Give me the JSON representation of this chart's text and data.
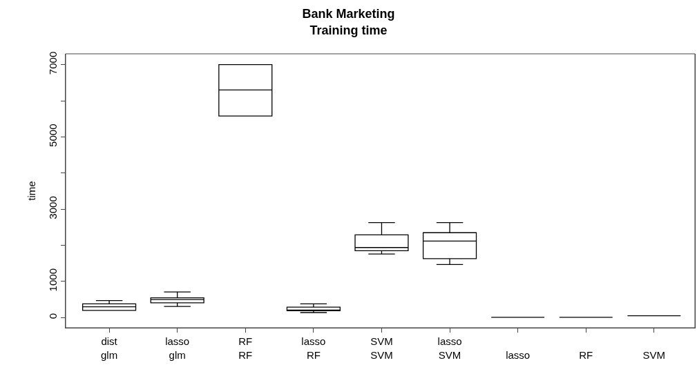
{
  "chart_data": {
    "type": "box",
    "title": "Bank Marketing\nTraining time",
    "ylabel": "time",
    "categories": [
      "dist\nglm",
      "lasso\nglm",
      "RF\nRF",
      "lasso\nRF",
      "SVM\nSVM",
      "lasso\nSVM",
      "lasso",
      "RF",
      "SVM"
    ],
    "boxes": [
      {
        "low": 200,
        "q1": 200,
        "median": 300,
        "q3": 380,
        "high": 470
      },
      {
        "low": 310,
        "q1": 410,
        "median": 500,
        "q3": 550,
        "high": 710
      },
      {
        "low": 5580,
        "q1": 5580,
        "median": 6300,
        "q3": 7000,
        "high": 7000
      },
      {
        "low": 140,
        "q1": 190,
        "median": 210,
        "q3": 290,
        "high": 380
      },
      {
        "low": 1760,
        "q1": 1850,
        "median": 1940,
        "q3": 2290,
        "high": 2630
      },
      {
        "low": 1470,
        "q1": 1630,
        "median": 2120,
        "q3": 2350,
        "high": 2630
      },
      {
        "low": 10,
        "q1": 10,
        "median": 10,
        "q3": 10,
        "high": 10
      },
      {
        "low": 10,
        "q1": 10,
        "median": 10,
        "q3": 10,
        "high": 10
      },
      {
        "low": 50,
        "q1": 50,
        "median": 50,
        "q3": 50,
        "high": 50
      }
    ],
    "color": "#000000",
    "ylim": [
      -280,
      7300
    ],
    "yticks": [
      0,
      1000,
      {
        "value": 2000,
        "label": null
      },
      3000,
      {
        "value": 4000,
        "label": null
      },
      5000,
      {
        "value": 6000,
        "label": null
      },
      7000
    ],
    "grid": false
  }
}
